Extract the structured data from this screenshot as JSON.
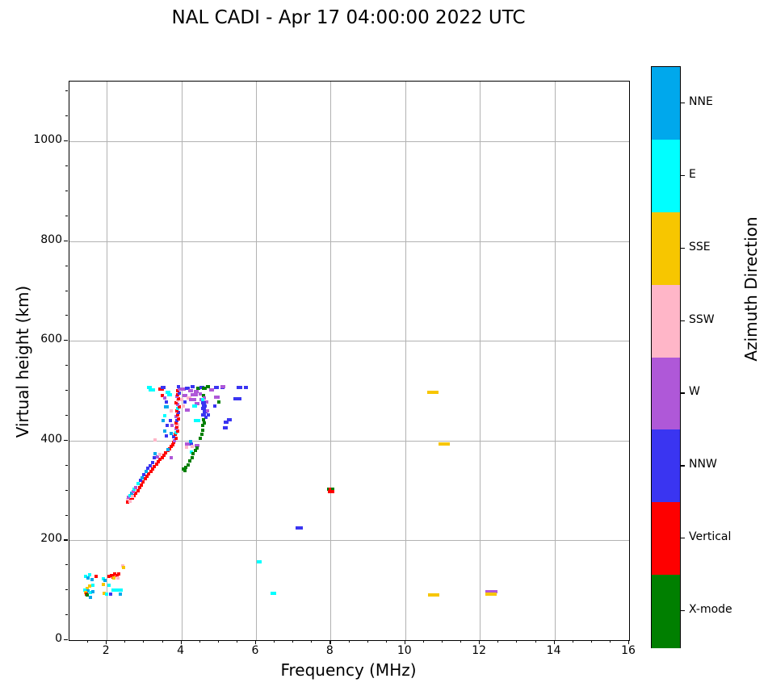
{
  "title": "NAL CADI - Apr 17 04:00:00 2022 UTC",
  "chart_data": {
    "type": "scatter",
    "title": "NAL CADI - Apr 17 04:00:00 2022 UTC",
    "xlabel": "Frequency (MHz)",
    "ylabel": "Virtual height (km)",
    "xlim": [
      1,
      16
    ],
    "ylim": [
      0,
      1120
    ],
    "x_ticks": [
      2,
      4,
      6,
      8,
      10,
      12,
      14,
      16
    ],
    "y_ticks": [
      0,
      200,
      400,
      600,
      800,
      1000
    ],
    "x_minor_step": 0.5,
    "y_minor_step": 50,
    "grid": true,
    "grid_color": "#b2b2b2",
    "legend_position": "right-colorbar",
    "colorbar": {
      "label": "Azimuth Direction",
      "entries": [
        {
          "label": "NNE",
          "color": "#00A8EC"
        },
        {
          "label": "E",
          "color": "#00FFFF"
        },
        {
          "label": "SSE",
          "color": "#F7C600"
        },
        {
          "label": "SSW",
          "color": "#FFB6C8"
        },
        {
          "label": "W",
          "color": "#AF58D8"
        },
        {
          "label": "NNW",
          "color": "#3A35F1"
        },
        {
          "label": "Vertical",
          "color": "#FE0000"
        },
        {
          "label": "X-mode",
          "color": "#007F00"
        }
      ]
    },
    "point_units": {
      "x": "MHz",
      "y": "km"
    },
    "default_span_mhz": 0.09,
    "points": [
      [
        1.44,
        128,
        "E"
      ],
      [
        1.5,
        125,
        "NNE"
      ],
      [
        1.55,
        131,
        "E"
      ],
      [
        1.6,
        122,
        "NNE"
      ],
      [
        1.72,
        128,
        "Vertical"
      ],
      [
        1.62,
        110,
        "E"
      ],
      [
        1.55,
        108,
        "SSE"
      ],
      [
        1.47,
        104,
        "SSE"
      ],
      [
        1.42,
        100,
        "E"
      ],
      [
        1.5,
        99,
        "NNE"
      ],
      [
        1.43,
        96,
        "SSE"
      ],
      [
        1.45,
        93,
        "Vertical"
      ],
      [
        1.47,
        90,
        "X-mode"
      ],
      [
        1.56,
        95,
        "E"
      ],
      [
        1.63,
        97,
        "NNE"
      ],
      [
        1.57,
        86,
        "NNE"
      ],
      [
        1.9,
        123,
        "E"
      ],
      [
        1.95,
        119,
        "NNE"
      ],
      [
        1.9,
        111,
        "SSE"
      ],
      [
        1.93,
        94,
        "SSE"
      ],
      [
        2.0,
        92,
        "E"
      ],
      [
        2.05,
        110,
        "E"
      ],
      [
        2.05,
        128,
        "Vertical"
      ],
      [
        2.12,
        130,
        "Vertical"
      ],
      [
        2.17,
        127,
        "Vertical"
      ],
      [
        2.22,
        132,
        "Vertical"
      ],
      [
        2.28,
        130,
        "Vertical"
      ],
      [
        2.33,
        133,
        "Vertical"
      ],
      [
        2.18,
        124,
        "SSE"
      ],
      [
        2.3,
        124,
        "SSW"
      ],
      [
        2.42,
        149,
        "SSW"
      ],
      [
        2.45,
        146,
        "SSE"
      ],
      [
        2.2,
        100,
        "E",
        0.15
      ],
      [
        2.33,
        100,
        "E",
        0.2
      ],
      [
        2.1,
        93,
        "NNW"
      ],
      [
        2.36,
        93,
        "NNE"
      ],
      [
        2.58,
        278,
        "Vertical"
      ],
      [
        2.63,
        281,
        "Vertical"
      ],
      [
        2.68,
        285,
        "Vertical"
      ],
      [
        2.73,
        290,
        "Vertical"
      ],
      [
        2.78,
        295,
        "Vertical"
      ],
      [
        2.83,
        300,
        "Vertical"
      ],
      [
        2.88,
        306,
        "Vertical"
      ],
      [
        2.93,
        311,
        "Vertical"
      ],
      [
        2.98,
        317,
        "Vertical"
      ],
      [
        3.03,
        323,
        "Vertical"
      ],
      [
        3.08,
        328,
        "Vertical"
      ],
      [
        3.13,
        333,
        "Vertical"
      ],
      [
        3.18,
        338,
        "Vertical"
      ],
      [
        3.23,
        343,
        "Vertical"
      ],
      [
        3.28,
        348,
        "Vertical"
      ],
      [
        3.33,
        353,
        "Vertical"
      ],
      [
        3.38,
        358,
        "Vertical"
      ],
      [
        3.43,
        362,
        "Vertical"
      ],
      [
        3.48,
        366,
        "Vertical"
      ],
      [
        3.53,
        370,
        "Vertical"
      ],
      [
        3.58,
        375,
        "Vertical"
      ],
      [
        3.63,
        380,
        "Vertical"
      ],
      [
        3.68,
        384,
        "Vertical"
      ],
      [
        3.73,
        388,
        "Vertical"
      ],
      [
        2.55,
        282,
        "SSW"
      ],
      [
        2.58,
        286,
        "W"
      ],
      [
        2.62,
        290,
        "E"
      ],
      [
        2.56,
        276,
        "Vertical"
      ],
      [
        2.66,
        294,
        "NNE"
      ],
      [
        2.7,
        298,
        "W"
      ],
      [
        2.62,
        279,
        "SSW"
      ],
      [
        2.74,
        302,
        "E"
      ],
      [
        2.84,
        314,
        "E"
      ],
      [
        2.9,
        320,
        "NNW"
      ],
      [
        2.95,
        326,
        "NNE"
      ],
      [
        3.0,
        332,
        "NNW"
      ],
      [
        3.06,
        338,
        "NNE"
      ],
      [
        3.1,
        344,
        "NNW"
      ],
      [
        3.16,
        350,
        "NNW"
      ],
      [
        3.22,
        356,
        "NNW"
      ],
      [
        3.3,
        374,
        "NNE"
      ],
      [
        3.35,
        368,
        "W"
      ],
      [
        3.42,
        372,
        "SSW"
      ],
      [
        3.28,
        365,
        "NNW"
      ],
      [
        2.68,
        288,
        "SSW"
      ],
      [
        2.78,
        306,
        "W"
      ],
      [
        3.78,
        392,
        "Vertical"
      ],
      [
        3.8,
        396,
        "Vertical"
      ],
      [
        3.82,
        400,
        "W"
      ],
      [
        3.85,
        404,
        "Vertical"
      ],
      [
        3.8,
        408,
        "NNW"
      ],
      [
        3.83,
        412,
        "Vertical"
      ],
      [
        3.86,
        416,
        "E"
      ],
      [
        3.9,
        420,
        "Vertical"
      ],
      [
        3.85,
        424,
        "W"
      ],
      [
        3.88,
        428,
        "Vertical"
      ],
      [
        3.9,
        432,
        "SSW"
      ],
      [
        3.85,
        436,
        "Vertical"
      ],
      [
        3.88,
        440,
        "NNW"
      ],
      [
        3.92,
        444,
        "Vertical"
      ],
      [
        3.86,
        448,
        "W"
      ],
      [
        3.9,
        452,
        "Vertical"
      ],
      [
        3.93,
        456,
        "NNW"
      ],
      [
        3.88,
        460,
        "Vertical"
      ],
      [
        3.9,
        464,
        "E"
      ],
      [
        3.94,
        468,
        "Vertical"
      ],
      [
        3.9,
        472,
        "W"
      ],
      [
        3.86,
        476,
        "Vertical"
      ],
      [
        3.9,
        480,
        "SSW"
      ],
      [
        3.93,
        484,
        "Vertical"
      ],
      [
        3.88,
        488,
        "W"
      ],
      [
        3.9,
        492,
        "Vertical"
      ],
      [
        3.94,
        496,
        "NNW"
      ],
      [
        3.9,
        500,
        "Vertical"
      ],
      [
        3.95,
        504,
        "W"
      ],
      [
        3.92,
        508,
        "NNW"
      ],
      [
        3.6,
        468,
        "NNE",
        0.12
      ],
      [
        3.65,
        497,
        "E",
        0.14
      ],
      [
        3.68,
        492,
        "E",
        0.14
      ],
      [
        3.55,
        450,
        "E"
      ],
      [
        3.5,
        440,
        "NNE"
      ],
      [
        3.62,
        430,
        "NNW"
      ],
      [
        3.55,
        420,
        "NNE"
      ],
      [
        3.6,
        410,
        "NNW"
      ],
      [
        3.2,
        502,
        "E",
        0.17
      ],
      [
        3.15,
        507,
        "E",
        0.12
      ],
      [
        3.45,
        503,
        "Vertical",
        0.15
      ],
      [
        3.52,
        507,
        "NNW",
        0.12
      ],
      [
        3.48,
        490,
        "Vertical"
      ],
      [
        3.55,
        485,
        "W"
      ],
      [
        3.6,
        478,
        "NNW"
      ],
      [
        3.72,
        460,
        "SSW"
      ],
      [
        3.7,
        440,
        "NNW"
      ],
      [
        3.75,
        430,
        "W"
      ],
      [
        3.65,
        382,
        "NNE"
      ],
      [
        3.72,
        415,
        "NNE"
      ],
      [
        3.3,
        402,
        "SSW"
      ],
      [
        3.72,
        365,
        "W"
      ],
      [
        4.05,
        503,
        "W",
        0.12
      ],
      [
        4.15,
        505,
        "NNW",
        0.12
      ],
      [
        4.25,
        500,
        "W",
        0.14
      ],
      [
        4.3,
        508,
        "NNW",
        0.1
      ],
      [
        4.4,
        498,
        "W",
        0.14
      ],
      [
        4.45,
        505,
        "X-mode",
        0.1
      ],
      [
        4.55,
        507,
        "NNW",
        0.12
      ],
      [
        4.62,
        505,
        "X-mode",
        0.12
      ],
      [
        4.72,
        508,
        "X-mode",
        0.1
      ],
      [
        4.8,
        502,
        "W",
        0.14
      ],
      [
        4.95,
        506,
        "NNW",
        0.14
      ],
      [
        5.1,
        507,
        "NNW",
        0.1
      ],
      [
        5.55,
        507,
        "NNW",
        0.16
      ],
      [
        5.72,
        507,
        "NNW",
        0.1
      ],
      [
        5.12,
        509,
        "W",
        0.12
      ],
      [
        4.95,
        487,
        "W",
        0.16
      ],
      [
        4.35,
        492,
        "W",
        0.2
      ],
      [
        4.5,
        494,
        "W"
      ],
      [
        4.1,
        490,
        "W",
        0.14
      ],
      [
        4.2,
        486,
        "SSW",
        0.12
      ],
      [
        4.3,
        482,
        "W",
        0.2
      ],
      [
        4.55,
        482,
        "W",
        0.14
      ],
      [
        4.65,
        478,
        "W",
        0.12
      ],
      [
        4.42,
        475,
        "W",
        0.12
      ],
      [
        4.35,
        470,
        "E",
        0.12
      ],
      [
        4.1,
        478,
        "NNW"
      ],
      [
        4.05,
        470,
        "SSW"
      ],
      [
        4.0,
        482,
        "SSW"
      ],
      [
        4.15,
        462,
        "W",
        0.14
      ],
      [
        4.6,
        490,
        "X-mode"
      ],
      [
        4.62,
        486,
        "W"
      ],
      [
        4.58,
        482,
        "E"
      ],
      [
        4.6,
        476,
        "NNW",
        0.14
      ],
      [
        4.62,
        470,
        "NNW",
        0.14
      ],
      [
        4.6,
        464,
        "NNW",
        0.14
      ],
      [
        4.64,
        458,
        "NNW",
        0.14
      ],
      [
        4.6,
        452,
        "NNW",
        0.14
      ],
      [
        4.66,
        447,
        "NNW"
      ],
      [
        4.6,
        442,
        "X-mode"
      ],
      [
        4.62,
        436,
        "X-mode"
      ],
      [
        4.58,
        430,
        "X-mode"
      ],
      [
        4.7,
        460,
        "W"
      ],
      [
        4.72,
        452,
        "NNW"
      ],
      [
        5.2,
        437,
        "NNW",
        0.14
      ],
      [
        5.28,
        442,
        "NNW",
        0.12
      ],
      [
        5.18,
        425,
        "NNW",
        0.14
      ],
      [
        5.45,
        484,
        "NNW",
        0.12
      ],
      [
        5.56,
        484,
        "NNW",
        0.1
      ],
      [
        5.0,
        478,
        "X-mode"
      ],
      [
        4.9,
        470,
        "NNW"
      ],
      [
        4.42,
        441,
        "E",
        0.18
      ],
      [
        4.24,
        393,
        "NNW",
        0.12
      ],
      [
        4.17,
        393,
        "W",
        0.14
      ],
      [
        4.42,
        390,
        "W",
        0.14
      ],
      [
        4.14,
        387,
        "SSW"
      ],
      [
        4.3,
        389,
        "SSW"
      ],
      [
        4.25,
        398,
        "NNE"
      ],
      [
        4.26,
        377,
        "E"
      ],
      [
        4.05,
        343,
        "X-mode"
      ],
      [
        4.1,
        340,
        "X-mode"
      ],
      [
        4.12,
        347,
        "X-mode"
      ],
      [
        4.18,
        352,
        "X-mode"
      ],
      [
        4.22,
        360,
        "X-mode"
      ],
      [
        4.28,
        366,
        "X-mode"
      ],
      [
        4.32,
        374,
        "X-mode"
      ],
      [
        4.38,
        380,
        "X-mode"
      ],
      [
        4.42,
        385,
        "X-mode"
      ],
      [
        4.5,
        404,
        "X-mode"
      ],
      [
        4.54,
        412,
        "X-mode"
      ],
      [
        4.58,
        421,
        "X-mode"
      ],
      [
        7.15,
        225,
        "NNW",
        0.2
      ],
      [
        6.08,
        157,
        "E",
        0.12
      ],
      [
        6.47,
        94,
        "E",
        0.16
      ],
      [
        7.95,
        302,
        "X-mode",
        0.08
      ],
      [
        8.0,
        302,
        "Vertical",
        0.08
      ],
      [
        8.06,
        302,
        "X-mode",
        0.08
      ],
      [
        7.98,
        298,
        "Vertical",
        0.1
      ],
      [
        8.05,
        298,
        "Vertical",
        0.08
      ],
      [
        10.75,
        497,
        "SSE",
        0.3
      ],
      [
        11.05,
        394,
        "SSE",
        0.3
      ],
      [
        10.76,
        91,
        "SSE",
        0.3
      ],
      [
        12.3,
        97,
        "W",
        0.33
      ],
      [
        12.3,
        93,
        "SSE",
        0.3
      ]
    ]
  }
}
